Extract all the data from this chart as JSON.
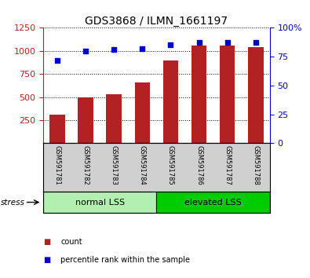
{
  "title": "GDS3868 / ILMN_1661197",
  "samples": [
    "GSM591781",
    "GSM591782",
    "GSM591783",
    "GSM591784",
    "GSM591785",
    "GSM591786",
    "GSM591787",
    "GSM591788"
  ],
  "bar_values": [
    305,
    500,
    530,
    660,
    900,
    1060,
    1055,
    1040
  ],
  "percentile_values": [
    72,
    80,
    81,
    82,
    85,
    87,
    87,
    87
  ],
  "bar_color": "#b22222",
  "dot_color": "#0000cd",
  "ylim_left": [
    0,
    1250
  ],
  "ylim_right": [
    0,
    100
  ],
  "yticks_left": [
    250,
    500,
    750,
    1000,
    1250
  ],
  "yticks_right": [
    0,
    25,
    50,
    75,
    100
  ],
  "groups": [
    {
      "label": "normal LSS",
      "start": 0,
      "end": 4,
      "color": "#b2f0b2",
      "dark_color": "#228B22"
    },
    {
      "label": "elevated LSS",
      "start": 4,
      "end": 8,
      "color": "#00cc00",
      "dark_color": "#006400"
    }
  ],
  "stress_label": "stress",
  "legend_items": [
    {
      "color": "#b22222",
      "label": "count"
    },
    {
      "color": "#0000cd",
      "label": "percentile rank within the sample"
    }
  ],
  "grid_style": "dotted",
  "bg_xlabel": "#d0d0d0"
}
